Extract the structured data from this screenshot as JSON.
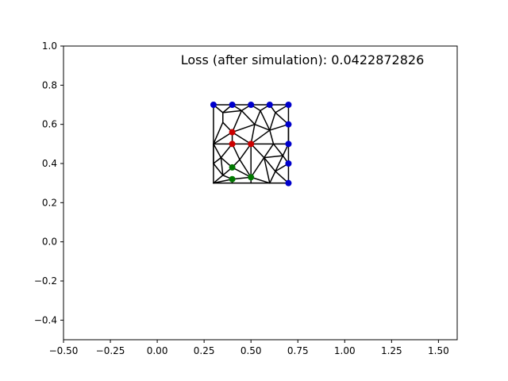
{
  "chart_data": {
    "type": "scatter",
    "title": "Loss (after simulation): 0.0422872826",
    "xlabel": "",
    "ylabel": "",
    "xlim": [
      -0.5,
      1.6
    ],
    "ylim": [
      -0.5,
      1.0
    ],
    "x_ticks": [
      -0.5,
      -0.25,
      0.0,
      0.25,
      0.5,
      0.75,
      1.0,
      1.25,
      1.5
    ],
    "x_tick_labels": [
      "−0.50",
      "−0.25",
      "0.00",
      "0.25",
      "0.50",
      "0.75",
      "1.00",
      "1.25",
      "1.50"
    ],
    "y_ticks": [
      -0.4,
      -0.2,
      0.0,
      0.2,
      0.4,
      0.6,
      0.8,
      1.0
    ],
    "y_tick_labels": [
      "−0.4",
      "−0.2",
      "0.0",
      "0.2",
      "0.4",
      "0.6",
      "0.8",
      "1.0"
    ],
    "grid": false,
    "colors": {
      "mesh": "#000000",
      "blue": "#0000cc",
      "red": "#cc0000",
      "green": "#007700"
    },
    "mesh_edges": [
      [
        [
          0.3,
          0.3
        ],
        [
          0.7,
          0.3
        ]
      ],
      [
        [
          0.7,
          0.3
        ],
        [
          0.7,
          0.7
        ]
      ],
      [
        [
          0.7,
          0.7
        ],
        [
          0.3,
          0.7
        ]
      ],
      [
        [
          0.3,
          0.7
        ],
        [
          0.3,
          0.3
        ]
      ],
      [
        [
          0.3,
          0.7
        ],
        [
          0.35,
          0.66
        ]
      ],
      [
        [
          0.35,
          0.66
        ],
        [
          0.35,
          0.61
        ]
      ],
      [
        [
          0.3,
          0.5
        ],
        [
          0.35,
          0.61
        ]
      ],
      [
        [
          0.35,
          0.66
        ],
        [
          0.45,
          0.67
        ]
      ],
      [
        [
          0.45,
          0.67
        ],
        [
          0.4,
          0.56
        ]
      ],
      [
        [
          0.35,
          0.61
        ],
        [
          0.4,
          0.56
        ]
      ],
      [
        [
          0.4,
          0.7
        ],
        [
          0.35,
          0.66
        ]
      ],
      [
        [
          0.4,
          0.7
        ],
        [
          0.45,
          0.67
        ]
      ],
      [
        [
          0.5,
          0.7
        ],
        [
          0.45,
          0.67
        ]
      ],
      [
        [
          0.5,
          0.7
        ],
        [
          0.55,
          0.67
        ]
      ],
      [
        [
          0.6,
          0.7
        ],
        [
          0.55,
          0.67
        ]
      ],
      [
        [
          0.6,
          0.7
        ],
        [
          0.63,
          0.66
        ]
      ],
      [
        [
          0.7,
          0.7
        ],
        [
          0.63,
          0.66
        ]
      ],
      [
        [
          0.7,
          0.6
        ],
        [
          0.63,
          0.66
        ]
      ],
      [
        [
          0.55,
          0.67
        ],
        [
          0.52,
          0.6
        ]
      ],
      [
        [
          0.45,
          0.67
        ],
        [
          0.52,
          0.6
        ]
      ],
      [
        [
          0.52,
          0.6
        ],
        [
          0.4,
          0.56
        ]
      ],
      [
        [
          0.52,
          0.6
        ],
        [
          0.6,
          0.57
        ]
      ],
      [
        [
          0.55,
          0.67
        ],
        [
          0.6,
          0.57
        ]
      ],
      [
        [
          0.63,
          0.66
        ],
        [
          0.6,
          0.57
        ]
      ],
      [
        [
          0.7,
          0.6
        ],
        [
          0.6,
          0.57
        ]
      ],
      [
        [
          0.6,
          0.57
        ],
        [
          0.5,
          0.5
        ]
      ],
      [
        [
          0.52,
          0.6
        ],
        [
          0.5,
          0.5
        ]
      ],
      [
        [
          0.4,
          0.56
        ],
        [
          0.5,
          0.5
        ]
      ],
      [
        [
          0.4,
          0.56
        ],
        [
          0.4,
          0.5
        ]
      ],
      [
        [
          0.3,
          0.5
        ],
        [
          0.4,
          0.56
        ]
      ],
      [
        [
          0.3,
          0.5
        ],
        [
          0.4,
          0.5
        ]
      ],
      [
        [
          0.4,
          0.5
        ],
        [
          0.5,
          0.5
        ]
      ],
      [
        [
          0.6,
          0.57
        ],
        [
          0.62,
          0.5
        ]
      ],
      [
        [
          0.7,
          0.5
        ],
        [
          0.62,
          0.5
        ]
      ],
      [
        [
          0.7,
          0.6
        ],
        [
          0.7,
          0.5
        ]
      ],
      [
        [
          0.5,
          0.5
        ],
        [
          0.62,
          0.5
        ]
      ],
      [
        [
          0.62,
          0.5
        ],
        [
          0.67,
          0.44
        ]
      ],
      [
        [
          0.7,
          0.5
        ],
        [
          0.67,
          0.44
        ]
      ],
      [
        [
          0.7,
          0.4
        ],
        [
          0.67,
          0.44
        ]
      ],
      [
        [
          0.62,
          0.5
        ],
        [
          0.57,
          0.43
        ]
      ],
      [
        [
          0.5,
          0.5
        ],
        [
          0.57,
          0.43
        ]
      ],
      [
        [
          0.67,
          0.44
        ],
        [
          0.57,
          0.43
        ]
      ],
      [
        [
          0.7,
          0.4
        ],
        [
          0.63,
          0.36
        ]
      ],
      [
        [
          0.57,
          0.43
        ],
        [
          0.63,
          0.36
        ]
      ],
      [
        [
          0.67,
          0.44
        ],
        [
          0.63,
          0.36
        ]
      ],
      [
        [
          0.63,
          0.36
        ],
        [
          0.7,
          0.3
        ]
      ],
      [
        [
          0.63,
          0.36
        ],
        [
          0.6,
          0.3
        ]
      ],
      [
        [
          0.57,
          0.43
        ],
        [
          0.6,
          0.3
        ]
      ],
      [
        [
          0.57,
          0.43
        ],
        [
          0.5,
          0.33
        ]
      ],
      [
        [
          0.5,
          0.33
        ],
        [
          0.6,
          0.3
        ]
      ],
      [
        [
          0.5,
          0.33
        ],
        [
          0.5,
          0.3
        ]
      ],
      [
        [
          0.5,
          0.5
        ],
        [
          0.5,
          0.33
        ]
      ],
      [
        [
          0.5,
          0.5
        ],
        [
          0.44,
          0.42
        ]
      ],
      [
        [
          0.4,
          0.5
        ],
        [
          0.44,
          0.42
        ]
      ],
      [
        [
          0.44,
          0.42
        ],
        [
          0.4,
          0.38
        ]
      ],
      [
        [
          0.44,
          0.42
        ],
        [
          0.5,
          0.33
        ]
      ],
      [
        [
          0.4,
          0.38
        ],
        [
          0.5,
          0.33
        ]
      ],
      [
        [
          0.4,
          0.5
        ],
        [
          0.34,
          0.43
        ]
      ],
      [
        [
          0.3,
          0.5
        ],
        [
          0.34,
          0.43
        ]
      ],
      [
        [
          0.34,
          0.43
        ],
        [
          0.4,
          0.38
        ]
      ],
      [
        [
          0.3,
          0.5
        ],
        [
          0.3,
          0.4
        ]
      ],
      [
        [
          0.3,
          0.4
        ],
        [
          0.34,
          0.43
        ]
      ],
      [
        [
          0.3,
          0.4
        ],
        [
          0.35,
          0.34
        ]
      ],
      [
        [
          0.34,
          0.43
        ],
        [
          0.35,
          0.34
        ]
      ],
      [
        [
          0.35,
          0.34
        ],
        [
          0.4,
          0.38
        ]
      ],
      [
        [
          0.35,
          0.34
        ],
        [
          0.4,
          0.32
        ]
      ],
      [
        [
          0.4,
          0.32
        ],
        [
          0.5,
          0.33
        ]
      ],
      [
        [
          0.35,
          0.34
        ],
        [
          0.3,
          0.3
        ]
      ],
      [
        [
          0.4,
          0.32
        ],
        [
          0.4,
          0.3
        ]
      ],
      [
        [
          0.4,
          0.32
        ],
        [
          0.3,
          0.3
        ]
      ]
    ],
    "points": [
      {
        "x": 0.3,
        "y": 0.7,
        "color": "blue"
      },
      {
        "x": 0.4,
        "y": 0.7,
        "color": "blue"
      },
      {
        "x": 0.5,
        "y": 0.7,
        "color": "blue"
      },
      {
        "x": 0.6,
        "y": 0.7,
        "color": "blue"
      },
      {
        "x": 0.7,
        "y": 0.7,
        "color": "blue"
      },
      {
        "x": 0.7,
        "y": 0.6,
        "color": "blue"
      },
      {
        "x": 0.7,
        "y": 0.5,
        "color": "blue"
      },
      {
        "x": 0.7,
        "y": 0.4,
        "color": "blue"
      },
      {
        "x": 0.7,
        "y": 0.3,
        "color": "blue"
      },
      {
        "x": 0.4,
        "y": 0.56,
        "color": "red"
      },
      {
        "x": 0.4,
        "y": 0.5,
        "color": "red"
      },
      {
        "x": 0.5,
        "y": 0.5,
        "color": "red"
      },
      {
        "x": 0.4,
        "y": 0.38,
        "color": "green"
      },
      {
        "x": 0.4,
        "y": 0.32,
        "color": "green"
      },
      {
        "x": 0.5,
        "y": 0.33,
        "color": "green"
      }
    ]
  }
}
